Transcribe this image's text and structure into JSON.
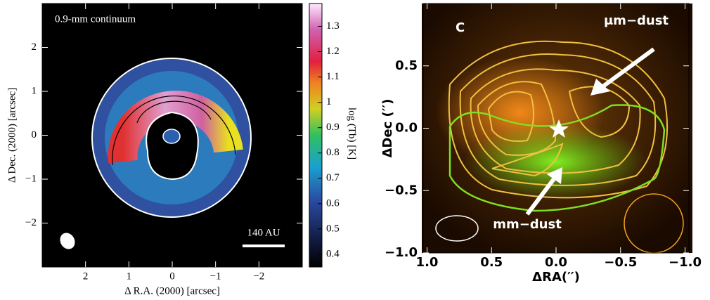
{
  "chart_data": [
    {
      "type": "image",
      "title": "0.9-mm continuum",
      "annotation": "140 AU",
      "xlabel": "Δ R.A. (2000) [arcsec]",
      "ylabel": "Δ Dec. (2000) [arcsec]",
      "xlim": [
        3,
        -3
      ],
      "ylim": [
        -3,
        3
      ],
      "xticks": [
        2,
        1,
        0,
        {
          "value": -1,
          "label": "−1"
        },
        {
          "value": -2,
          "label": "−2"
        }
      ],
      "yticks": [
        {
          "value": -2,
          "label": "−2"
        },
        {
          "value": -1,
          "label": "−1"
        },
        0,
        1,
        2
      ],
      "colorbar": {
        "label": "log (Tb) [K]",
        "lim": [
          0.35,
          1.39
        ],
        "ticks": [
          0.4,
          0.5,
          0.6,
          0.7,
          0.8,
          0.9,
          1,
          1.1,
          1.2,
          1.3
        ]
      }
    },
    {
      "type": "image",
      "title": "C",
      "annotations": [
        "μm−dust",
        "mm−dust"
      ],
      "xlabel": "ΔRA(′′)",
      "ylabel": "ΔDec (′′)",
      "xlim": [
        1.03,
        -1.03
      ],
      "ylim": [
        -1,
        1
      ],
      "xticks": [
        {
          "value": 1,
          "label": "1.0"
        },
        0.5,
        {
          "value": 0,
          "label": "0.0"
        },
        {
          "value": -0.5,
          "label": "−0.5"
        },
        {
          "value": -1,
          "label": "−1.0"
        }
      ],
      "yticks": [
        {
          "value": -1,
          "label": "−1.0"
        },
        {
          "value": -0.5,
          "label": "−0.5"
        },
        {
          "value": 0,
          "label": "0.0"
        },
        0.5
      ]
    }
  ]
}
